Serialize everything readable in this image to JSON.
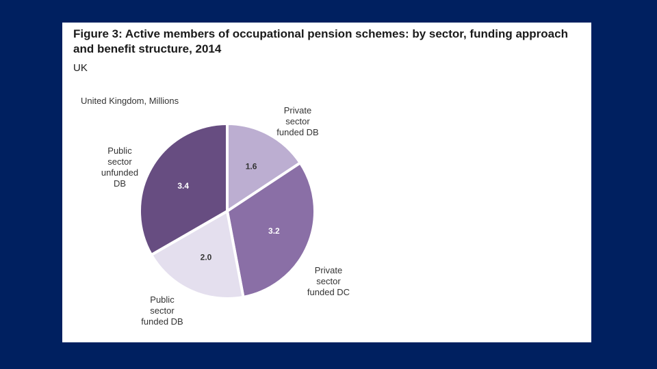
{
  "figure": {
    "title": "Figure 3: Active members of occupational pension schemes: by sector, funding approach and benefit structure, 2014",
    "subtitle": "UK"
  },
  "colors": {
    "slide_background": "#002060",
    "panel_background": "#ffffff",
    "separator": "#ffffff"
  },
  "chart_data": {
    "type": "pie",
    "title": "",
    "units_label": "United Kingdom, Millions",
    "start_angle_deg": 0,
    "direction": "clockwise",
    "slices": [
      {
        "label": "Private sector funded DB",
        "label_lines": [
          "Private",
          "sector",
          "funded DB"
        ],
        "value": 1.6,
        "value_text": "1.6",
        "color": "#bcaed1",
        "value_text_color": "#333333"
      },
      {
        "label": "Private sector funded DC",
        "label_lines": [
          "Private",
          "sector",
          "funded DC"
        ],
        "value": 3.2,
        "value_text": "3.2",
        "color": "#8a6fa6",
        "value_text_color": "#ffffff"
      },
      {
        "label": "Public sector funded DB",
        "label_lines": [
          "Public",
          "sector",
          "funded DB"
        ],
        "value": 2.0,
        "value_text": "2.0",
        "color": "#e4dfee",
        "value_text_color": "#333333"
      },
      {
        "label": "Public sector unfunded DB",
        "label_lines": [
          "Public",
          "sector",
          "unfunded",
          "DB"
        ],
        "value": 3.4,
        "value_text": "3.4",
        "color": "#674d81",
        "value_text_color": "#ffffff"
      }
    ]
  }
}
